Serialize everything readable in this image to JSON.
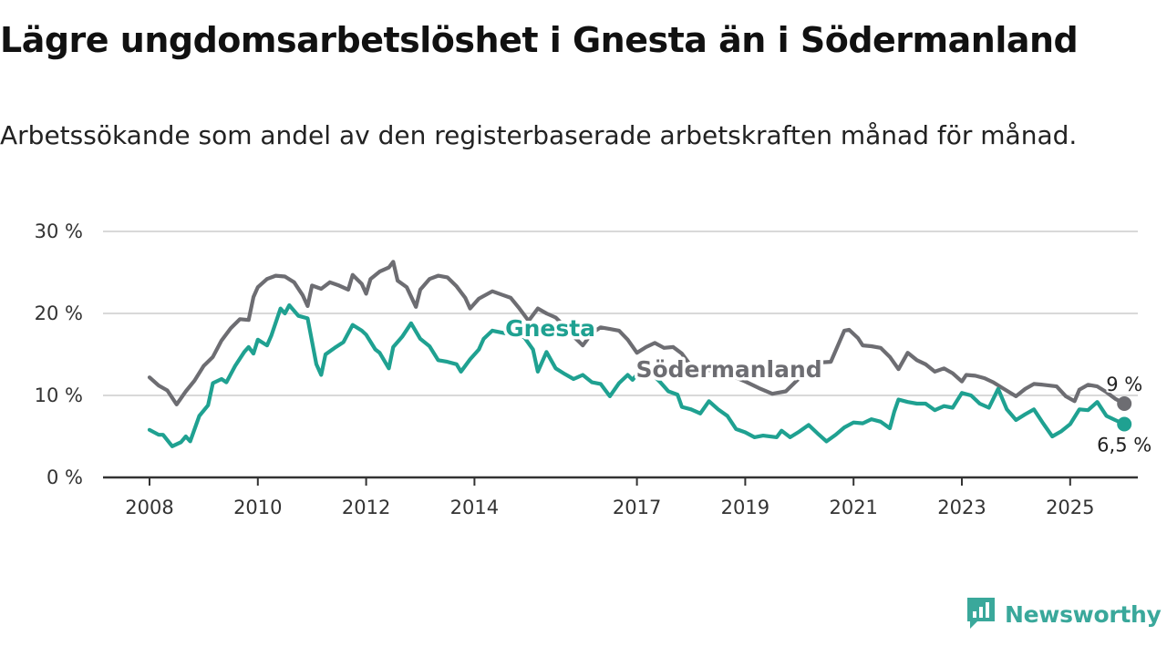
{
  "title": "Lägre ungdomsarbetslöshet i Gnesta än i Södermanland",
  "subtitle": "Arbetssökande som andel av den registerbaserade arbetskraften månad för månad.",
  "brand": {
    "name": "Newsworthy",
    "icon": "newsworthy-logo-icon",
    "color": "#3aa89b"
  },
  "chart_data": {
    "type": "line",
    "ylim": [
      0,
      30
    ],
    "y_ticks": [
      0,
      10,
      20,
      30
    ],
    "y_tick_labels": [
      "0 %",
      "10 %",
      "20 %",
      "30 %"
    ],
    "x_ticks": [
      2008,
      2010,
      2012,
      2014,
      2017,
      2019,
      2021,
      2023,
      2025
    ],
    "x_tick_labels": [
      "2008",
      "2010",
      "2012",
      "2014",
      "2017",
      "2019",
      "2021",
      "2023",
      "2025"
    ],
    "grid": true,
    "series": [
      {
        "name": "Södermanland",
        "color": "#6d6d72",
        "end_label": "9 %",
        "points": [
          [
            2008.0,
            12.2
          ],
          [
            2008.17,
            11.2
          ],
          [
            2008.33,
            10.6
          ],
          [
            2008.5,
            8.9
          ],
          [
            2008.67,
            10.5
          ],
          [
            2008.83,
            11.8
          ],
          [
            2009.0,
            13.6
          ],
          [
            2009.17,
            14.7
          ],
          [
            2009.33,
            16.7
          ],
          [
            2009.5,
            18.2
          ],
          [
            2009.67,
            19.3
          ],
          [
            2009.83,
            19.2
          ],
          [
            2009.92,
            22.0
          ],
          [
            2010.0,
            23.2
          ],
          [
            2010.17,
            24.2
          ],
          [
            2010.33,
            24.6
          ],
          [
            2010.5,
            24.5
          ],
          [
            2010.67,
            23.8
          ],
          [
            2010.83,
            22.2
          ],
          [
            2010.92,
            20.9
          ],
          [
            2011.0,
            23.4
          ],
          [
            2011.17,
            23.0
          ],
          [
            2011.33,
            23.8
          ],
          [
            2011.5,
            23.4
          ],
          [
            2011.67,
            22.9
          ],
          [
            2011.75,
            24.7
          ],
          [
            2011.92,
            23.6
          ],
          [
            2012.0,
            22.4
          ],
          [
            2012.08,
            24.2
          ],
          [
            2012.25,
            25.1
          ],
          [
            2012.42,
            25.6
          ],
          [
            2012.5,
            26.3
          ],
          [
            2012.58,
            24.0
          ],
          [
            2012.75,
            23.2
          ],
          [
            2012.92,
            20.8
          ],
          [
            2013.0,
            22.9
          ],
          [
            2013.17,
            24.2
          ],
          [
            2013.33,
            24.6
          ],
          [
            2013.5,
            24.4
          ],
          [
            2013.67,
            23.3
          ],
          [
            2013.83,
            21.9
          ],
          [
            2013.92,
            20.6
          ],
          [
            2014.08,
            21.8
          ],
          [
            2014.33,
            22.7
          ],
          [
            2014.5,
            22.3
          ],
          [
            2014.67,
            21.9
          ],
          [
            2014.83,
            20.6
          ],
          [
            2015.0,
            19.1
          ],
          [
            2015.17,
            20.6
          ],
          [
            2015.33,
            20.0
          ],
          [
            2015.5,
            19.5
          ],
          [
            2015.67,
            18.4
          ],
          [
            2015.83,
            17.2
          ],
          [
            2016.0,
            16.1
          ],
          [
            2016.17,
            17.6
          ],
          [
            2016.33,
            18.3
          ],
          [
            2016.5,
            18.1
          ],
          [
            2016.67,
            17.9
          ],
          [
            2016.83,
            16.8
          ],
          [
            2017.0,
            15.2
          ],
          [
            2017.17,
            15.9
          ],
          [
            2017.33,
            16.4
          ],
          [
            2017.5,
            15.8
          ],
          [
            2017.67,
            15.9
          ],
          [
            2017.83,
            15.1
          ],
          [
            2018.0,
            13.6
          ],
          [
            2018.25,
            13.1
          ],
          [
            2018.5,
            13.0
          ],
          [
            2018.75,
            12.4
          ],
          [
            2019.0,
            11.7
          ],
          [
            2019.25,
            10.9
          ],
          [
            2019.5,
            10.2
          ],
          [
            2019.75,
            10.5
          ],
          [
            2019.92,
            11.6
          ],
          [
            2020.17,
            13.2
          ],
          [
            2020.33,
            14.0
          ],
          [
            2020.58,
            14.1
          ],
          [
            2020.75,
            16.7
          ],
          [
            2020.83,
            17.9
          ],
          [
            2020.92,
            18.0
          ],
          [
            2021.08,
            17.0
          ],
          [
            2021.17,
            16.1
          ],
          [
            2021.33,
            16.0
          ],
          [
            2021.5,
            15.8
          ],
          [
            2021.67,
            14.7
          ],
          [
            2021.83,
            13.2
          ],
          [
            2022.0,
            15.2
          ],
          [
            2022.17,
            14.3
          ],
          [
            2022.33,
            13.8
          ],
          [
            2022.5,
            12.9
          ],
          [
            2022.67,
            13.3
          ],
          [
            2022.83,
            12.7
          ],
          [
            2023.0,
            11.7
          ],
          [
            2023.08,
            12.5
          ],
          [
            2023.25,
            12.4
          ],
          [
            2023.42,
            12.1
          ],
          [
            2023.58,
            11.6
          ],
          [
            2023.75,
            10.9
          ],
          [
            2024.0,
            9.9
          ],
          [
            2024.17,
            10.8
          ],
          [
            2024.33,
            11.4
          ],
          [
            2024.5,
            11.3
          ],
          [
            2024.75,
            11.1
          ],
          [
            2024.92,
            9.9
          ],
          [
            2025.08,
            9.3
          ],
          [
            2025.17,
            10.7
          ],
          [
            2025.33,
            11.3
          ],
          [
            2025.5,
            11.1
          ],
          [
            2025.67,
            10.4
          ],
          [
            2025.83,
            9.6
          ],
          [
            2026.0,
            9.0
          ]
        ]
      },
      {
        "name": "Gnesta",
        "color": "#1fa191",
        "end_label": "6,5 %",
        "points": [
          [
            2008.0,
            5.8
          ],
          [
            2008.17,
            5.2
          ],
          [
            2008.25,
            5.2
          ],
          [
            2008.42,
            3.8
          ],
          [
            2008.58,
            4.3
          ],
          [
            2008.67,
            5.0
          ],
          [
            2008.75,
            4.4
          ],
          [
            2008.92,
            7.5
          ],
          [
            2009.08,
            8.8
          ],
          [
            2009.17,
            11.5
          ],
          [
            2009.33,
            12.0
          ],
          [
            2009.42,
            11.6
          ],
          [
            2009.58,
            13.6
          ],
          [
            2009.75,
            15.3
          ],
          [
            2009.83,
            15.9
          ],
          [
            2009.92,
            15.1
          ],
          [
            2010.0,
            16.8
          ],
          [
            2010.17,
            16.1
          ],
          [
            2010.25,
            17.3
          ],
          [
            2010.42,
            20.6
          ],
          [
            2010.5,
            20.0
          ],
          [
            2010.58,
            21.0
          ],
          [
            2010.75,
            19.7
          ],
          [
            2010.92,
            19.4
          ],
          [
            2011.08,
            13.8
          ],
          [
            2011.17,
            12.5
          ],
          [
            2011.25,
            15.0
          ],
          [
            2011.42,
            15.8
          ],
          [
            2011.58,
            16.5
          ],
          [
            2011.75,
            18.6
          ],
          [
            2011.92,
            17.9
          ],
          [
            2012.0,
            17.4
          ],
          [
            2012.17,
            15.6
          ],
          [
            2012.25,
            15.2
          ],
          [
            2012.42,
            13.3
          ],
          [
            2012.5,
            15.9
          ],
          [
            2012.67,
            17.2
          ],
          [
            2012.83,
            18.8
          ],
          [
            2013.0,
            16.9
          ],
          [
            2013.17,
            16.0
          ],
          [
            2013.33,
            14.3
          ],
          [
            2013.5,
            14.1
          ],
          [
            2013.67,
            13.8
          ],
          [
            2013.75,
            12.9
          ],
          [
            2013.92,
            14.4
          ],
          [
            2014.08,
            15.6
          ],
          [
            2014.17,
            16.9
          ],
          [
            2014.33,
            17.9
          ],
          [
            2014.92,
            17.1
          ],
          [
            2015.08,
            15.6
          ],
          [
            2015.17,
            12.9
          ],
          [
            2015.33,
            15.3
          ],
          [
            2015.5,
            13.3
          ],
          [
            2015.67,
            12.6
          ],
          [
            2015.83,
            12.0
          ],
          [
            2016.0,
            12.5
          ],
          [
            2016.17,
            11.6
          ],
          [
            2016.33,
            11.4
          ],
          [
            2016.5,
            9.9
          ],
          [
            2016.67,
            11.5
          ],
          [
            2016.83,
            12.5
          ],
          [
            2016.92,
            11.9
          ],
          [
            2017.08,
            13.2
          ],
          [
            2017.25,
            12.8
          ],
          [
            2017.42,
            11.7
          ],
          [
            2017.58,
            10.5
          ],
          [
            2017.75,
            10.1
          ],
          [
            2017.83,
            8.6
          ],
          [
            2018.0,
            8.3
          ],
          [
            2018.17,
            7.8
          ],
          [
            2018.33,
            9.3
          ],
          [
            2018.5,
            8.3
          ],
          [
            2018.67,
            7.5
          ],
          [
            2018.83,
            5.9
          ],
          [
            2019.0,
            5.5
          ],
          [
            2019.17,
            4.9
          ],
          [
            2019.33,
            5.1
          ],
          [
            2019.58,
            4.9
          ],
          [
            2019.67,
            5.7
          ],
          [
            2019.83,
            4.9
          ],
          [
            2020.0,
            5.6
          ],
          [
            2020.17,
            6.4
          ],
          [
            2020.33,
            5.4
          ],
          [
            2020.5,
            4.4
          ],
          [
            2020.67,
            5.2
          ],
          [
            2020.83,
            6.1
          ],
          [
            2021.0,
            6.7
          ],
          [
            2021.17,
            6.6
          ],
          [
            2021.33,
            7.1
          ],
          [
            2021.5,
            6.8
          ],
          [
            2021.67,
            6.0
          ],
          [
            2021.75,
            8.0
          ],
          [
            2021.83,
            9.5
          ],
          [
            2022.0,
            9.2
          ],
          [
            2022.17,
            9.0
          ],
          [
            2022.33,
            9.0
          ],
          [
            2022.5,
            8.2
          ],
          [
            2022.67,
            8.7
          ],
          [
            2022.83,
            8.5
          ],
          [
            2023.0,
            10.3
          ],
          [
            2023.17,
            10.0
          ],
          [
            2023.33,
            9.0
          ],
          [
            2023.5,
            8.5
          ],
          [
            2023.67,
            10.8
          ],
          [
            2023.83,
            8.3
          ],
          [
            2024.0,
            7.0
          ],
          [
            2024.17,
            7.7
          ],
          [
            2024.33,
            8.3
          ],
          [
            2024.5,
            6.6
          ],
          [
            2024.67,
            5.0
          ],
          [
            2024.83,
            5.6
          ],
          [
            2025.0,
            6.5
          ],
          [
            2025.17,
            8.3
          ],
          [
            2025.33,
            8.2
          ],
          [
            2025.5,
            9.2
          ],
          [
            2025.67,
            7.5
          ],
          [
            2025.83,
            7.0
          ],
          [
            2026.0,
            6.5
          ]
        ]
      }
    ],
    "series_labels": [
      {
        "text": "Södermanland",
        "series": "Södermanland",
        "at": [
          2018.7,
          13.2
        ]
      },
      {
        "text": "Gnesta",
        "series": "Gnesta",
        "at": [
          2015.4,
          18.2
        ]
      }
    ]
  }
}
